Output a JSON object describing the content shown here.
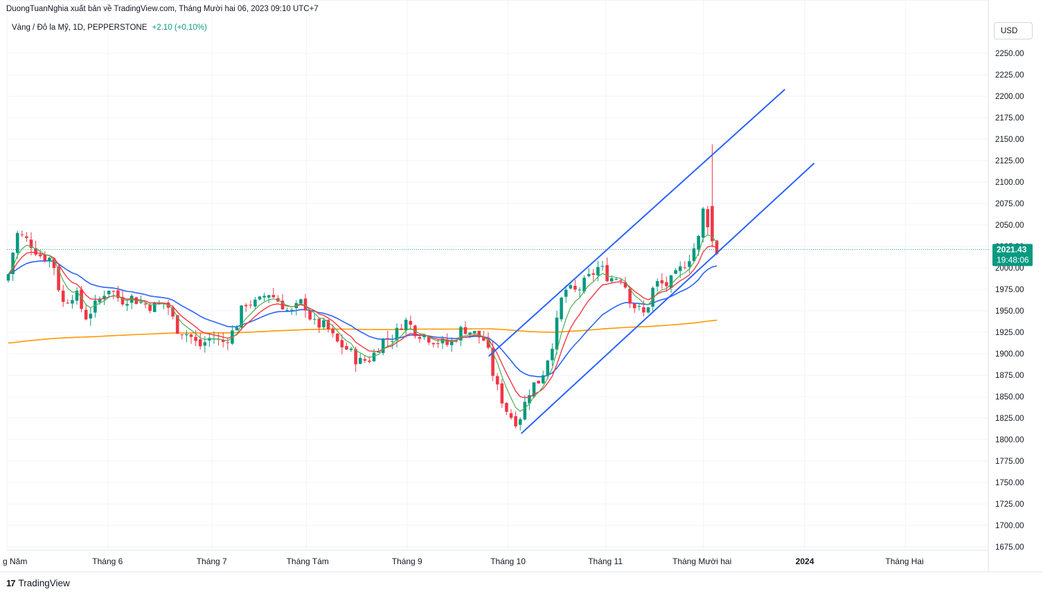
{
  "header": {
    "title": "DuongTuanNghia xuất bản về TradingView.com, Tháng Mười hai 06, 2023 09:10 UTC+7"
  },
  "legend": {
    "symbol": "Vàng / Đô la Mỹ, 1D, PEPPERSTONE",
    "change": "+2.10 (+0.10%)"
  },
  "currency_button": {
    "label": "USD"
  },
  "price_label": {
    "price": "2021.43",
    "countdown": "19:48:06"
  },
  "brand": {
    "name": "TradingView",
    "logo_icon": "tradingview-logo-icon"
  },
  "colors": {
    "up": "#089981",
    "down": "#f23645",
    "ema_fast": "#4caf50",
    "ema_mid": "#f23645",
    "ma_blue": "#2962ff",
    "ma_orange": "#ff9800",
    "trendline": "#2962ff",
    "grid": "#f0f3fa"
  },
  "chart_data": {
    "type": "candlestick",
    "y_axis": {
      "range": [
        1665,
        2270
      ],
      "ticks": [
        1675,
        1700,
        1725,
        1750,
        1775,
        1800,
        1825,
        1850,
        1875,
        1900,
        1925,
        1950,
        1975,
        2000,
        2025,
        2050,
        2075,
        2100,
        2125,
        2150,
        2175,
        2200,
        2225,
        2250
      ],
      "tick_labels": [
        "1675.00",
        "1700.00",
        "1725.00",
        "1750.00",
        "1775.00",
        "1800.00",
        "1825.00",
        "1850.00",
        "1875.00",
        "1900.00",
        "1925.00",
        "1950.00",
        "1975.00",
        "2000.00",
        "2025.00",
        "2050.00",
        "2075.00",
        "2100.00",
        "2125.00",
        "2150.00",
        "2175.00",
        "2200.00",
        "2225.00",
        "2250.00"
      ]
    },
    "x_axis": {
      "start": "2023-05-01",
      "end": "2024-03-15",
      "ticks": [
        {
          "date": "2023-05-01",
          "label": "g Năm"
        },
        {
          "date": "2023-06-01",
          "label": "Tháng 6"
        },
        {
          "date": "2023-07-03",
          "label": "Tháng 7"
        },
        {
          "date": "2023-08-01",
          "label": "Tháng Tám"
        },
        {
          "date": "2023-09-01",
          "label": "Tháng 9"
        },
        {
          "date": "2023-10-02",
          "label": "Tháng 10"
        },
        {
          "date": "2023-11-01",
          "label": "Tháng 11"
        },
        {
          "date": "2023-12-01",
          "label": "Tháng Mười hai"
        },
        {
          "date": "2024-01-01",
          "label": "2024",
          "bold": true
        },
        {
          "date": "2024-02-01",
          "label": "Tháng Hai"
        }
      ]
    },
    "grid": true,
    "last_price": 2021.43,
    "approx_closes": [
      [
        "2023-05-01",
        1985
      ],
      [
        "2023-05-04",
        2040
      ],
      [
        "2023-05-08",
        2030
      ],
      [
        "2023-05-11",
        2015
      ],
      [
        "2023-05-15",
        2010
      ],
      [
        "2023-05-18",
        1958
      ],
      [
        "2023-05-22",
        1972
      ],
      [
        "2023-05-25",
        1942
      ],
      [
        "2023-05-29",
        1960
      ],
      [
        "2023-06-01",
        1978
      ],
      [
        "2023-06-05",
        1962
      ],
      [
        "2023-06-08",
        1966
      ],
      [
        "2023-06-12",
        1958
      ],
      [
        "2023-06-15",
        1955
      ],
      [
        "2023-06-19",
        1960
      ],
      [
        "2023-06-22",
        1930
      ],
      [
        "2023-06-26",
        1922
      ],
      [
        "2023-06-29",
        1908
      ],
      [
        "2023-07-03",
        1920
      ],
      [
        "2023-07-06",
        1912
      ],
      [
        "2023-07-10",
        1928
      ],
      [
        "2023-07-13",
        1960
      ],
      [
        "2023-07-17",
        1958
      ],
      [
        "2023-07-20",
        1972
      ],
      [
        "2023-07-24",
        1960
      ],
      [
        "2023-07-27",
        1946
      ],
      [
        "2023-07-31",
        1962
      ],
      [
        "2023-08-03",
        1935
      ],
      [
        "2023-08-07",
        1932
      ],
      [
        "2023-08-10",
        1914
      ],
      [
        "2023-08-14",
        1904
      ],
      [
        "2023-08-17",
        1890
      ],
      [
        "2023-08-21",
        1895
      ],
      [
        "2023-08-24",
        1915
      ],
      [
        "2023-08-28",
        1920
      ],
      [
        "2023-08-31",
        1940
      ],
      [
        "2023-09-04",
        1925
      ],
      [
        "2023-09-07",
        1920
      ],
      [
        "2023-09-11",
        1913
      ],
      [
        "2023-09-14",
        1910
      ],
      [
        "2023-09-18",
        1930
      ],
      [
        "2023-09-21",
        1925
      ],
      [
        "2023-09-25",
        1915
      ],
      [
        "2023-09-28",
        1865
      ],
      [
        "2023-10-02",
        1830
      ],
      [
        "2023-10-05",
        1820
      ],
      [
        "2023-10-09",
        1862
      ],
      [
        "2023-10-12",
        1870
      ],
      [
        "2023-10-16",
        1918
      ],
      [
        "2023-10-19",
        1975
      ],
      [
        "2023-10-23",
        1972
      ],
      [
        "2023-10-26",
        1985
      ],
      [
        "2023-10-30",
        2002
      ],
      [
        "2023-11-02",
        1988
      ],
      [
        "2023-11-06",
        1990
      ],
      [
        "2023-11-09",
        1958
      ],
      [
        "2023-11-13",
        1945
      ],
      [
        "2023-11-16",
        1982
      ],
      [
        "2023-11-20",
        1980
      ],
      [
        "2023-11-23",
        1993
      ],
      [
        "2023-11-27",
        2015
      ],
      [
        "2023-11-30",
        2038
      ],
      [
        "2023-12-01",
        2071
      ],
      [
        "2023-12-04",
        2028
      ],
      [
        "2023-12-05",
        2019
      ],
      [
        "2023-12-06",
        2021
      ]
    ]
  }
}
